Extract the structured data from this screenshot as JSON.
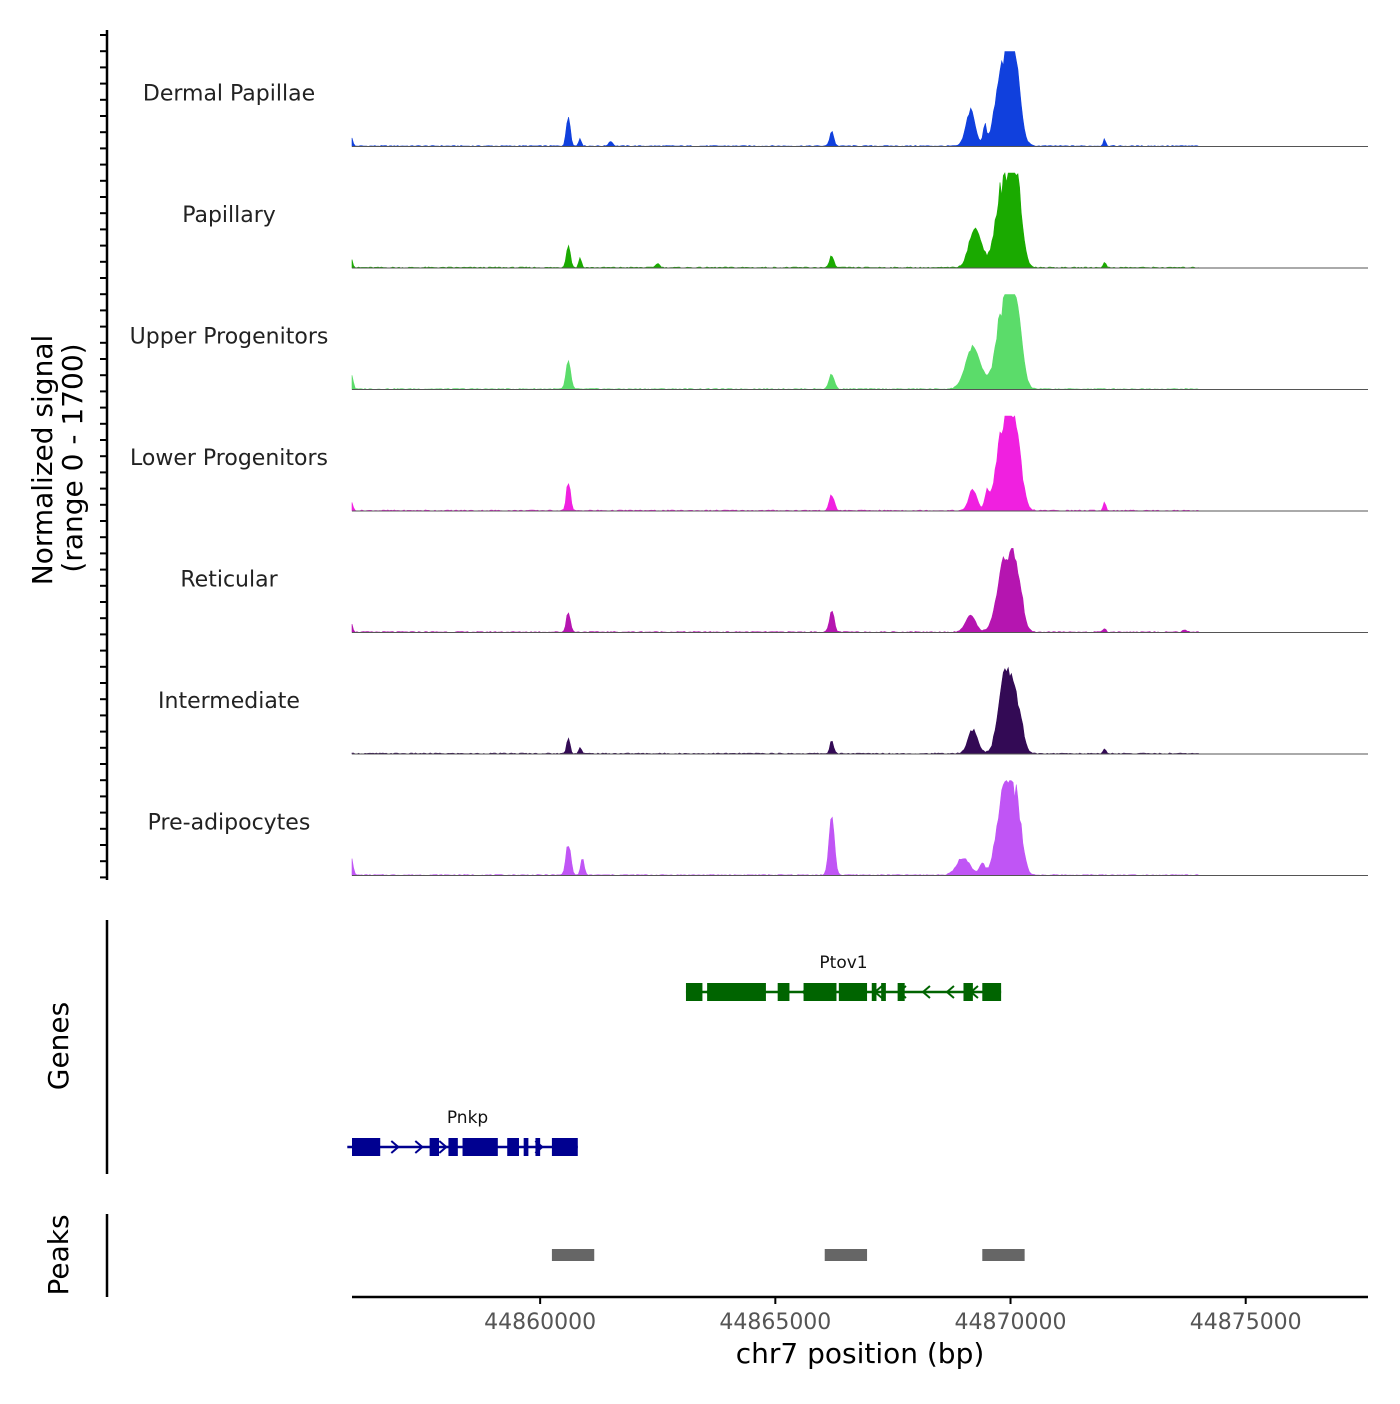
{
  "chart_data": {
    "type": "area",
    "title": "",
    "region": {
      "chromosome": "chr7",
      "start": 44856000,
      "end": 44877600
    },
    "xlabel": "chr7 position (bp)",
    "xticks": [
      44860000,
      44865000,
      44870000,
      44875000
    ],
    "xtick_labels": [
      "44860000",
      "44865000",
      "44870000",
      "44875000"
    ],
    "ylabel_line1": "Normalized signal",
    "ylabel_line2": "(range 0 - 1700)",
    "ylim": [
      0,
      1700
    ],
    "tracks": [
      {
        "name": "Dermal Papillae",
        "color": "#1040DD",
        "peaks": [
          [
            44856000,
            150,
            30
          ],
          [
            44860600,
            520,
            60
          ],
          [
            44860850,
            130,
            40
          ],
          [
            44861500,
            90,
            60
          ],
          [
            44866200,
            270,
            60
          ],
          [
            44869150,
            600,
            140
          ],
          [
            44869450,
            300,
            50
          ],
          [
            44869900,
            1700,
            250
          ],
          [
            44870100,
            900,
            150
          ],
          [
            44872000,
            120,
            40
          ]
        ]
      },
      {
        "name": "Papillary",
        "color": "#1AAA00",
        "peaks": [
          [
            44856000,
            150,
            30
          ],
          [
            44860600,
            400,
            60
          ],
          [
            44860850,
            180,
            40
          ],
          [
            44862500,
            80,
            60
          ],
          [
            44866200,
            220,
            60
          ],
          [
            44869250,
            700,
            180
          ],
          [
            44869900,
            1700,
            250
          ],
          [
            44870150,
            900,
            150
          ],
          [
            44872000,
            100,
            40
          ]
        ]
      },
      {
        "name": "Upper Progenitors",
        "color": "#5BDC6A",
        "peaks": [
          [
            44856000,
            250,
            40
          ],
          [
            44860600,
            500,
            70
          ],
          [
            44866200,
            250,
            80
          ],
          [
            44869200,
            750,
            220
          ],
          [
            44869900,
            1700,
            250
          ],
          [
            44870150,
            900,
            150
          ]
        ]
      },
      {
        "name": "Lower Progenitors",
        "color": "#F020E0",
        "peaks": [
          [
            44856000,
            150,
            30
          ],
          [
            44860600,
            520,
            60
          ],
          [
            44866200,
            300,
            70
          ],
          [
            44869200,
            380,
            120
          ],
          [
            44869500,
            300,
            60
          ],
          [
            44869900,
            1700,
            240
          ],
          [
            44870150,
            800,
            150
          ],
          [
            44872000,
            150,
            40
          ],
          [
            44874500,
            50,
            50
          ]
        ]
      },
      {
        "name": "Reticular",
        "color": "#B515B0",
        "peaks": [
          [
            44856000,
            150,
            30
          ],
          [
            44860600,
            350,
            60
          ],
          [
            44866200,
            380,
            70
          ],
          [
            44869150,
            300,
            150
          ],
          [
            44869900,
            1400,
            230
          ],
          [
            44870150,
            700,
            150
          ],
          [
            44872000,
            60,
            40
          ],
          [
            44873700,
            40,
            60
          ]
        ]
      },
      {
        "name": "Intermediate",
        "color": "#330A55",
        "peaks": [
          [
            44860600,
            280,
            50
          ],
          [
            44860850,
            120,
            40
          ],
          [
            44866200,
            260,
            50
          ],
          [
            44869200,
            450,
            140
          ],
          [
            44869900,
            1500,
            200
          ],
          [
            44870150,
            700,
            150
          ],
          [
            44872000,
            80,
            40
          ]
        ]
      },
      {
        "name": "Pre-adipocytes",
        "color": "#C055F5",
        "peaks": [
          [
            44856000,
            300,
            40
          ],
          [
            44860600,
            600,
            70
          ],
          [
            44860900,
            300,
            50
          ],
          [
            44866200,
            1050,
            80
          ],
          [
            44869000,
            300,
            200
          ],
          [
            44869400,
            200,
            80
          ],
          [
            44869900,
            1650,
            230
          ],
          [
            44870150,
            900,
            150
          ]
        ]
      }
    ],
    "genes_label": "Genes",
    "genes": [
      {
        "name": "Ptov1",
        "color": "#006400",
        "strand": "-",
        "start": 44863100,
        "end": 44869800,
        "exons": [
          [
            44863100,
            44863450
          ],
          [
            44863550,
            44864800
          ],
          [
            44865050,
            44865300
          ],
          [
            44865600,
            44866300
          ],
          [
            44866350,
            44866950
          ],
          [
            44867050,
            44867150
          ],
          [
            44867250,
            44867350
          ],
          [
            44867600,
            44867750
          ],
          [
            44869000,
            44869200
          ],
          [
            44869400,
            44869800
          ]
        ]
      },
      {
        "name": "Pnkp",
        "color": "#000090",
        "strand": "+",
        "start": 44855900,
        "end": 44860800,
        "exons": [
          [
            44856000,
            44856600
          ],
          [
            44857650,
            44857850
          ],
          [
            44858050,
            44858250
          ],
          [
            44858350,
            44859100
          ],
          [
            44859300,
            44859550
          ],
          [
            44859650,
            44859750
          ],
          [
            44859900,
            44860000
          ],
          [
            44860250,
            44860800
          ]
        ]
      }
    ],
    "peaks_label": "Peaks",
    "peak_regions": [
      [
        44860250,
        44861150
      ],
      [
        44866050,
        44866950
      ],
      [
        44869400,
        44870300
      ]
    ]
  }
}
